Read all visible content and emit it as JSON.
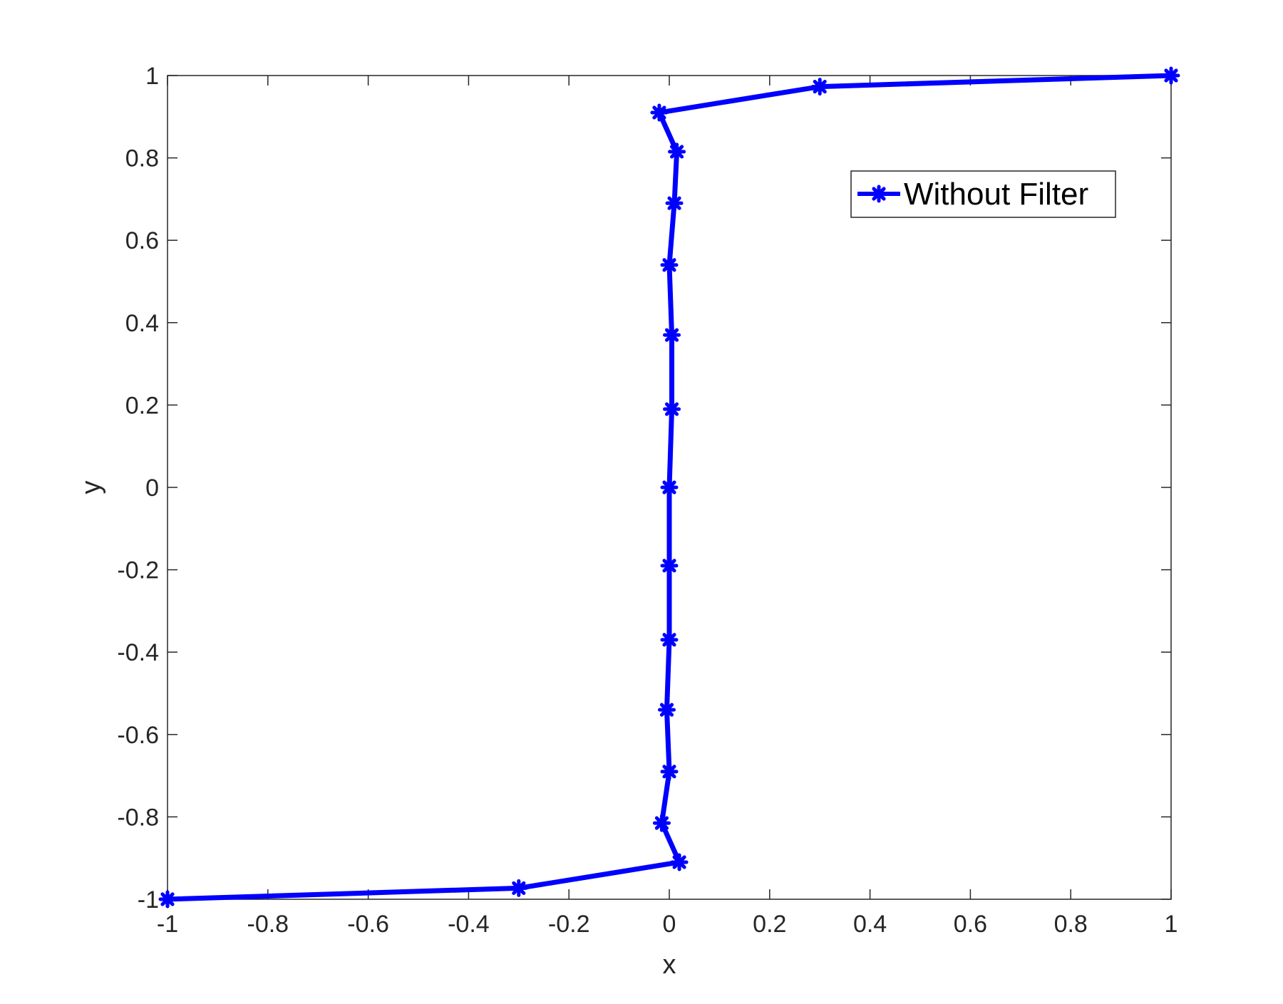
{
  "chart_data": {
    "type": "line",
    "title": "",
    "xlabel": "x",
    "ylabel": "y",
    "xlim": [
      -1,
      1
    ],
    "ylim": [
      -1,
      1
    ],
    "xticks": [
      "-1",
      "-0.8",
      "-0.6",
      "-0.4",
      "-0.2",
      "0",
      "0.2",
      "0.4",
      "0.6",
      "0.8",
      "1"
    ],
    "yticks": [
      "-1",
      "-0.8",
      "-0.6",
      "-0.4",
      "-0.2",
      "0",
      "0.2",
      "0.4",
      "0.6",
      "0.8",
      "1"
    ],
    "grid": false,
    "legend_position": "top-right",
    "series": [
      {
        "name": "Without Filter",
        "color": "#0000ff",
        "marker": "asterisk",
        "x": [
          -1,
          -0.3,
          0.02,
          -0.015,
          0,
          -0.005,
          0,
          0,
          0,
          0.005,
          0.005,
          0,
          0.01,
          0.015,
          -0.02,
          0.3,
          1
        ],
        "y": [
          -1,
          -0.973,
          -0.91,
          -0.815,
          -0.69,
          -0.54,
          -0.37,
          -0.19,
          0,
          0.19,
          0.37,
          0.54,
          0.69,
          0.815,
          0.91,
          0.973,
          1
        ]
      }
    ]
  }
}
